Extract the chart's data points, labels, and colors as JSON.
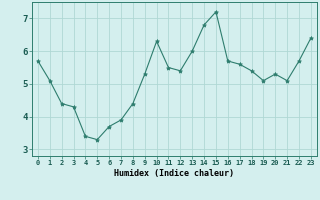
{
  "x": [
    0,
    1,
    2,
    3,
    4,
    5,
    6,
    7,
    8,
    9,
    10,
    11,
    12,
    13,
    14,
    15,
    16,
    17,
    18,
    19,
    20,
    21,
    22,
    23
  ],
  "y": [
    5.7,
    5.1,
    4.4,
    4.3,
    3.4,
    3.3,
    3.7,
    3.9,
    4.4,
    5.3,
    6.3,
    5.5,
    5.4,
    6.0,
    6.8,
    7.2,
    5.7,
    5.6,
    5.4,
    5.1,
    5.3,
    5.1,
    5.7,
    6.4
  ],
  "xlabel": "Humidex (Indice chaleur)",
  "line_color": "#2e7d6e",
  "marker_color": "#2e7d6e",
  "bg_color": "#d4efee",
  "grid_color": "#afd8d4",
  "xlim": [
    -0.5,
    23.5
  ],
  "ylim": [
    2.8,
    7.5
  ],
  "yticks": [
    3,
    4,
    5,
    6,
    7
  ],
  "xticks": [
    0,
    1,
    2,
    3,
    4,
    5,
    6,
    7,
    8,
    9,
    10,
    11,
    12,
    13,
    14,
    15,
    16,
    17,
    18,
    19,
    20,
    21,
    22,
    23
  ],
  "xlabel_fontsize": 6.0,
  "tick_fontsize": 5.0
}
